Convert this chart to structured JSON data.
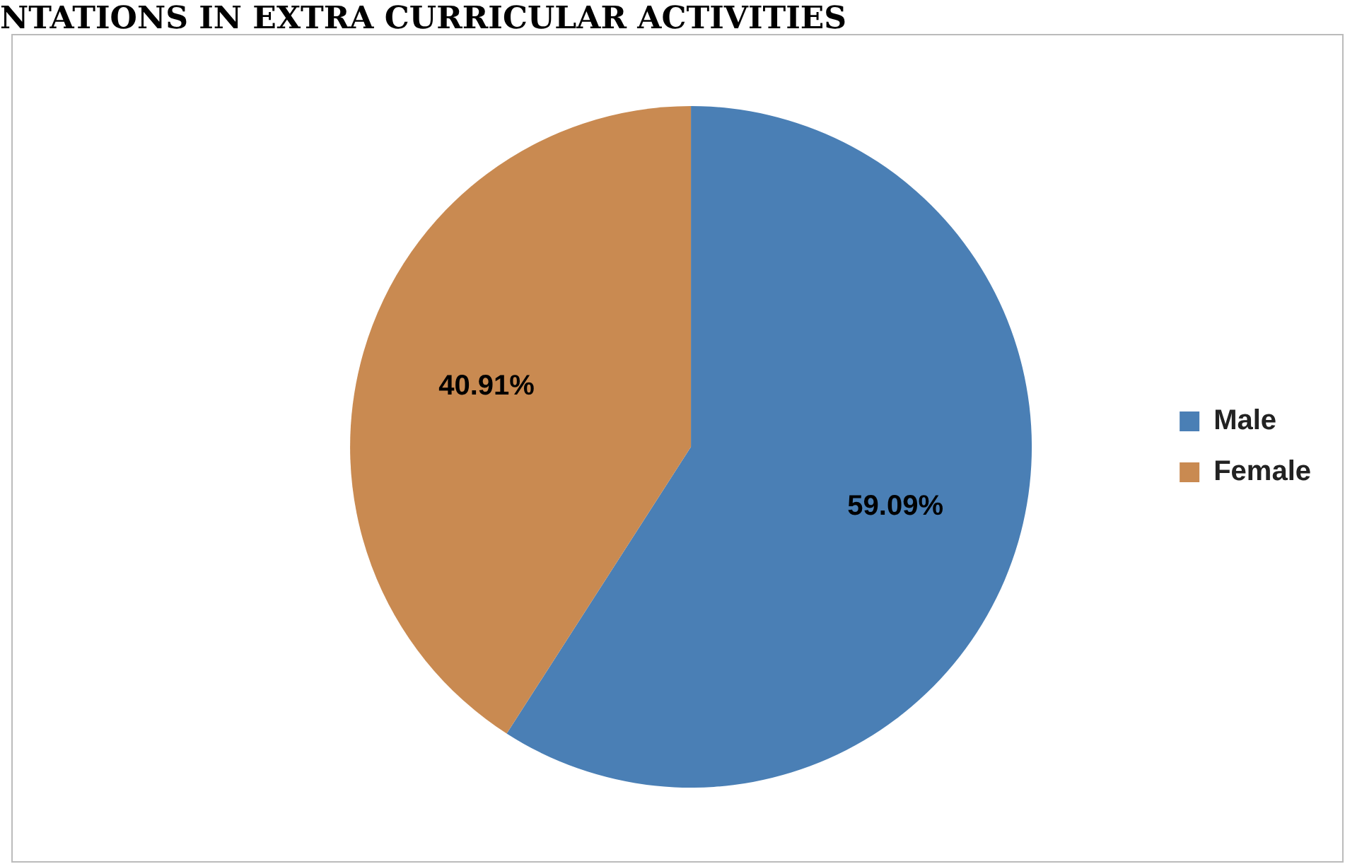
{
  "chart_data": {
    "type": "pie",
    "title": "NTATIONS IN EXTRA CURRICULAR ACTIVITIES",
    "categories": [
      "Male",
      "Female"
    ],
    "values": [
      59.09,
      40.91
    ],
    "colors": [
      "#4a7fb5",
      "#c98a51"
    ],
    "legend": "right",
    "value_labels": [
      "59.09%",
      "40.91%"
    ]
  }
}
